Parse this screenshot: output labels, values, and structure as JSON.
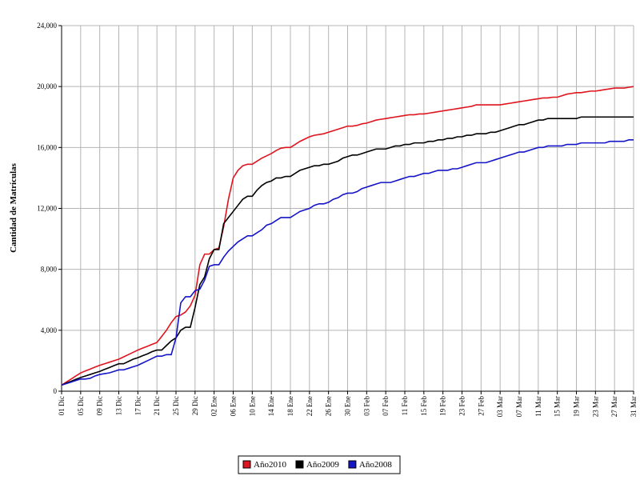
{
  "chart_data": {
    "type": "line",
    "y_label": "Cantidad de Matrículas",
    "categories": [
      "01 Dic",
      null,
      null,
      null,
      "05 Dic",
      null,
      null,
      null,
      "09 Dic",
      null,
      null,
      null,
      "13 Dic",
      null,
      null,
      null,
      "17 Dic",
      null,
      null,
      null,
      "21 Dic",
      null,
      null,
      null,
      "25 Dic",
      null,
      null,
      null,
      "29 Dic",
      null,
      null,
      null,
      "02 Ene",
      null,
      null,
      null,
      "06 Ene",
      null,
      null,
      null,
      "10 Ene",
      null,
      null,
      null,
      "14 Ene",
      null,
      null,
      null,
      "18 Ene",
      null,
      null,
      null,
      "22 Ene",
      null,
      null,
      null,
      "26 Ene",
      null,
      null,
      null,
      "30 Ene",
      null,
      null,
      null,
      "03 Feb",
      null,
      null,
      null,
      "07 Feb",
      null,
      null,
      null,
      "11 Feb",
      null,
      null,
      null,
      "15 Feb",
      null,
      null,
      null,
      "19 Feb",
      null,
      null,
      null,
      "23 Feb",
      null,
      null,
      null,
      "27 Feb",
      null,
      null,
      null,
      "03 Mar",
      null,
      null,
      null,
      "07 Mar",
      null,
      null,
      null,
      "11 Mar",
      null,
      null,
      null,
      "15 Mar",
      null,
      null,
      null,
      "19 Mar",
      null,
      null,
      null,
      "23 Mar",
      null,
      null,
      null,
      "27 Mar",
      null,
      null,
      null,
      "31 Mar"
    ],
    "series": [
      {
        "name": "Año2010",
        "color": "#e0141e",
        "values": [
          400,
          600,
          800,
          1000,
          1200,
          1330,
          1450,
          1580,
          1700,
          1800,
          1900,
          2000,
          2100,
          2250,
          2400,
          2550,
          2700,
          2830,
          2950,
          3080,
          3200,
          3600,
          4000,
          4500,
          4900,
          5000,
          5200,
          5600,
          6300,
          8300,
          9000,
          9000,
          9300,
          9400,
          10800,
          12600,
          14000,
          14500,
          14800,
          14900,
          14900,
          15100,
          15300,
          15450,
          15600,
          15800,
          15950,
          16000,
          16000,
          16200,
          16400,
          16550,
          16700,
          16800,
          16850,
          16900,
          17000,
          17100,
          17200,
          17300,
          17400,
          17400,
          17450,
          17550,
          17600,
          17700,
          17800,
          17850,
          17900,
          17950,
          18000,
          18050,
          18100,
          18150,
          18150,
          18200,
          18200,
          18250,
          18300,
          18350,
          18400,
          18450,
          18500,
          18550,
          18600,
          18650,
          18700,
          18800,
          18800,
          18800,
          18800,
          18800,
          18800,
          18850,
          18900,
          18950,
          19000,
          19050,
          19100,
          19150,
          19200,
          19250,
          19250,
          19300,
          19300,
          19400,
          19500,
          19550,
          19600,
          19600,
          19650,
          19700,
          19700,
          19750,
          19800,
          19850,
          19900,
          19900,
          19900,
          19950,
          20000
        ]
      },
      {
        "name": "Año2009",
        "color": "#000000",
        "values": [
          400,
          530,
          650,
          780,
          900,
          1000,
          1100,
          1200,
          1300,
          1430,
          1550,
          1680,
          1800,
          1800,
          1950,
          2100,
          2200,
          2330,
          2450,
          2600,
          2700,
          2700,
          3000,
          3300,
          3500,
          4000,
          4200,
          4200,
          5500,
          7000,
          7500,
          8700,
          9300,
          9300,
          11000,
          11400,
          11800,
          12200,
          12600,
          12800,
          12800,
          13200,
          13500,
          13700,
          13800,
          14000,
          14000,
          14100,
          14100,
          14300,
          14500,
          14600,
          14700,
          14800,
          14800,
          14900,
          14900,
          15000,
          15100,
          15300,
          15400,
          15500,
          15500,
          15600,
          15700,
          15800,
          15900,
          15900,
          15900,
          16000,
          16100,
          16100,
          16200,
          16200,
          16300,
          16300,
          16300,
          16400,
          16400,
          16500,
          16500,
          16600,
          16600,
          16700,
          16700,
          16800,
          16800,
          16900,
          16900,
          16900,
          17000,
          17000,
          17100,
          17200,
          17300,
          17400,
          17500,
          17500,
          17600,
          17700,
          17800,
          17800,
          17900,
          17900,
          17900,
          17900,
          17900,
          17900,
          17900,
          18000,
          18000,
          18000,
          18000,
          18000,
          18000,
          18000,
          18000,
          18000,
          18000,
          18000,
          18000
        ]
      },
      {
        "name": "Año2008",
        "color": "#1414c8",
        "values": [
          400,
          500,
          600,
          700,
          800,
          800,
          850,
          1000,
          1100,
          1150,
          1200,
          1300,
          1400,
          1400,
          1500,
          1600,
          1700,
          1850,
          2000,
          2150,
          2300,
          2300,
          2400,
          2400,
          3500,
          5800,
          6200,
          6200,
          6600,
          6700,
          7300,
          8200,
          8300,
          8300,
          8800,
          9200,
          9500,
          9800,
          10000,
          10200,
          10200,
          10400,
          10600,
          10900,
          11000,
          11200,
          11400,
          11400,
          11400,
          11600,
          11800,
          11900,
          12000,
          12200,
          12300,
          12300,
          12400,
          12600,
          12700,
          12900,
          13000,
          13000,
          13100,
          13300,
          13400,
          13500,
          13600,
          13700,
          13700,
          13700,
          13800,
          13900,
          14000,
          14100,
          14100,
          14200,
          14300,
          14300,
          14400,
          14500,
          14500,
          14500,
          14600,
          14600,
          14700,
          14800,
          14900,
          15000,
          15000,
          15000,
          15100,
          15200,
          15300,
          15400,
          15500,
          15600,
          15700,
          15700,
          15800,
          15900,
          16000,
          16000,
          16100,
          16100,
          16100,
          16100,
          16200,
          16200,
          16200,
          16300,
          16300,
          16300,
          16300,
          16300,
          16300,
          16400,
          16400,
          16400,
          16400,
          16500,
          16500
        ]
      }
    ],
    "ylim": [
      0,
      24000
    ],
    "yticks": [
      0,
      {
        "value": 4000,
        "label": "4,000"
      },
      {
        "value": 8000,
        "label": "8,000"
      },
      {
        "value": 12000,
        "label": "12,000"
      },
      {
        "value": 16000,
        "label": "16,000"
      },
      {
        "value": 20000,
        "label": "20,000"
      },
      {
        "value": 24000,
        "label": "24,000"
      }
    ],
    "grid": true,
    "legend": "bottom"
  }
}
